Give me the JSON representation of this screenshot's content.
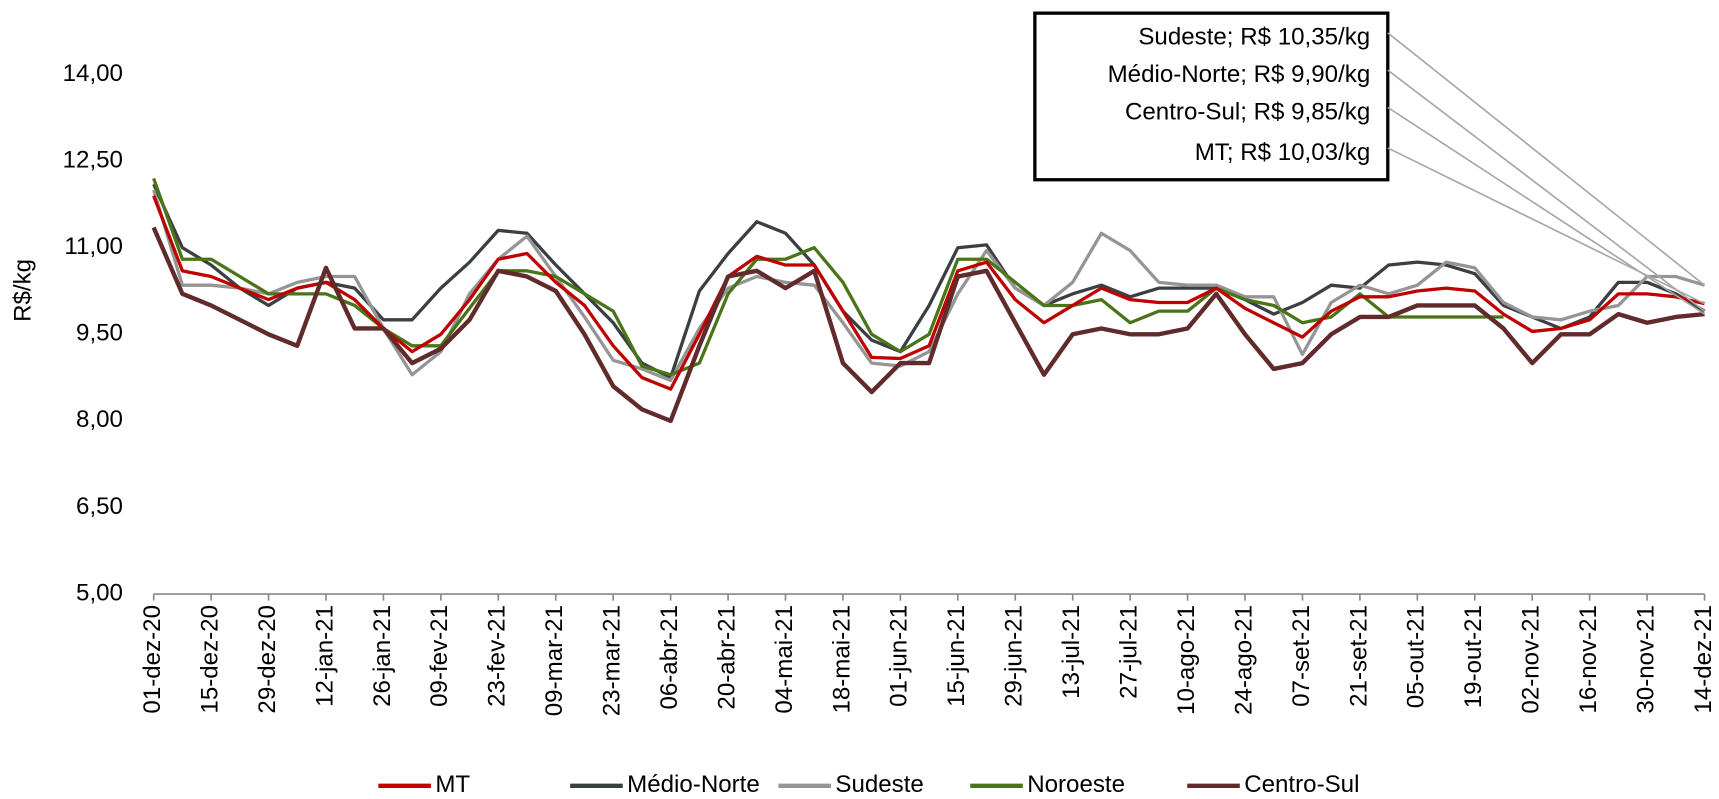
{
  "chart_data": {
    "type": "line",
    "y_label": "R$/kg",
    "categories": [
      "01-dez-20",
      null,
      "15-dez-20",
      null,
      "29-dez-20",
      null,
      "12-jan-21",
      null,
      "26-jan-21",
      null,
      "09-fev-21",
      null,
      "23-fev-21",
      null,
      "09-mar-21",
      null,
      "23-mar-21",
      null,
      "06-abr-21",
      null,
      "20-abr-21",
      null,
      "04-mai-21",
      null,
      "18-mai-21",
      null,
      "01-jun-21",
      null,
      "15-jun-21",
      null,
      "29-jun-21",
      null,
      "13-jul-21",
      null,
      "27-jul-21",
      null,
      "10-ago-21",
      null,
      "24-ago-21",
      null,
      "07-set-21",
      null,
      "21-set-21",
      null,
      "05-out-21",
      null,
      "19-out-21",
      null,
      "02-nov-21",
      null,
      "16-nov-21",
      null,
      "30-nov-21",
      null,
      "14-dez-21"
    ],
    "series": [
      {
        "name": "MT",
        "color": "#c00000",
        "values": [
          11.9,
          10.6,
          10.5,
          10.3,
          10.1,
          10.3,
          10.4,
          10.1,
          9.6,
          9.2,
          9.5,
          10.1,
          10.8,
          10.9,
          10.4,
          10.0,
          9.3,
          8.75,
          8.55,
          9.5,
          10.5,
          10.85,
          10.7,
          10.7,
          9.9,
          9.1,
          9.08,
          9.3,
          10.6,
          10.75,
          10.1,
          9.7,
          10.0,
          10.3,
          10.1,
          10.05,
          10.05,
          10.3,
          9.95,
          9.7,
          9.45,
          9.9,
          10.15,
          10.15,
          10.25,
          10.3,
          10.25,
          9.85,
          9.55,
          9.6,
          9.75,
          10.2,
          10.2,
          10.15,
          10.03
        ]
      },
      {
        "name": "Médio-Norte",
        "color": "#3a3f41",
        "values": [
          12.1,
          11.0,
          10.7,
          10.3,
          10.0,
          10.3,
          10.4,
          10.3,
          9.75,
          9.75,
          10.3,
          10.75,
          11.3,
          11.25,
          10.7,
          10.2,
          9.7,
          9.0,
          8.75,
          10.25,
          10.9,
          11.45,
          11.25,
          10.7,
          9.9,
          9.4,
          9.2,
          10.0,
          11.0,
          11.05,
          10.3,
          10.0,
          10.2,
          10.35,
          10.15,
          10.3,
          10.3,
          10.3,
          10.1,
          9.85,
          10.05,
          10.35,
          10.3,
          10.7,
          10.75,
          10.7,
          10.55,
          10.0,
          9.8,
          9.6,
          9.8,
          10.4,
          10.4,
          10.2,
          9.9
        ]
      },
      {
        "name": "Sudeste",
        "color": "#959595",
        "values": [
          12.0,
          10.35,
          10.35,
          10.3,
          10.2,
          10.4,
          10.5,
          10.5,
          9.6,
          8.8,
          9.2,
          10.2,
          10.8,
          11.2,
          10.5,
          9.8,
          9.05,
          8.9,
          8.7,
          9.6,
          10.3,
          10.5,
          10.4,
          10.35,
          9.7,
          9.0,
          8.95,
          9.2,
          10.2,
          10.95,
          10.3,
          10.0,
          10.4,
          11.25,
          10.95,
          10.4,
          10.35,
          10.35,
          10.15,
          10.15,
          9.15,
          10.05,
          10.35,
          10.2,
          10.35,
          10.75,
          10.65,
          10.05,
          9.8,
          9.75,
          9.9,
          10.0,
          10.5,
          10.5,
          10.35
        ]
      },
      {
        "name": "Noroeste",
        "color": "#4a7418",
        "values": [
          12.2,
          10.8,
          10.8,
          10.5,
          10.2,
          10.2,
          10.2,
          10.0,
          9.6,
          9.3,
          9.3,
          9.95,
          10.6,
          10.6,
          10.5,
          10.2,
          9.9,
          8.95,
          8.8,
          9.0,
          10.2,
          10.8,
          10.8,
          11.0,
          10.4,
          9.5,
          9.2,
          9.5,
          10.8,
          10.8,
          10.4,
          10.0,
          10.0,
          10.1,
          9.7,
          9.9,
          9.9,
          10.3,
          10.1,
          10.0,
          9.7,
          9.8,
          10.2,
          9.8,
          9.8,
          9.8,
          9.8,
          9.8,
          null,
          null,
          null,
          null,
          null,
          null,
          null
        ]
      },
      {
        "name": "Centro-Sul",
        "color": "#612b2b",
        "values": [
          11.35,
          10.2,
          10.0,
          9.75,
          9.5,
          9.3,
          10.65,
          9.6,
          9.6,
          9.0,
          9.25,
          9.75,
          10.6,
          10.5,
          10.25,
          9.5,
          8.6,
          8.2,
          8.0,
          9.3,
          10.5,
          10.6,
          10.3,
          10.6,
          9.0,
          8.5,
          9.0,
          9.0,
          10.5,
          10.6,
          9.7,
          8.8,
          9.5,
          9.6,
          9.5,
          9.5,
          9.6,
          10.2,
          9.5,
          8.9,
          9.0,
          9.5,
          9.8,
          9.8,
          10.0,
          10.0,
          10.0,
          9.6,
          9.0,
          9.5,
          9.5,
          9.85,
          9.7,
          9.8,
          9.85
        ]
      }
    ],
    "annotations": [
      {
        "text": "Sudeste; R$ 10,35/kg",
        "series": "Sudeste"
      },
      {
        "text": "Médio-Norte; R$ 9,90/kg",
        "series": "Médio-Norte"
      },
      {
        "text": "Centro-Sul; R$ 9,85/kg",
        "series": "Centro-Sul"
      },
      {
        "text": "MT; R$ 10,03/kg",
        "series": "MT"
      }
    ],
    "ylim": [
      5,
      14
    ],
    "yticks": [
      {
        "value": 5,
        "label": "5,00"
      },
      {
        "value": 6.5,
        "label": "6,50"
      },
      {
        "value": 8,
        "label": "8,00"
      },
      {
        "value": 9.5,
        "label": "9,50"
      },
      {
        "value": 11,
        "label": "11,00"
      },
      {
        "value": 12.5,
        "label": "12,50"
      },
      {
        "value": 14,
        "label": "14,00"
      }
    ],
    "grid": false,
    "legend": "bottom"
  }
}
